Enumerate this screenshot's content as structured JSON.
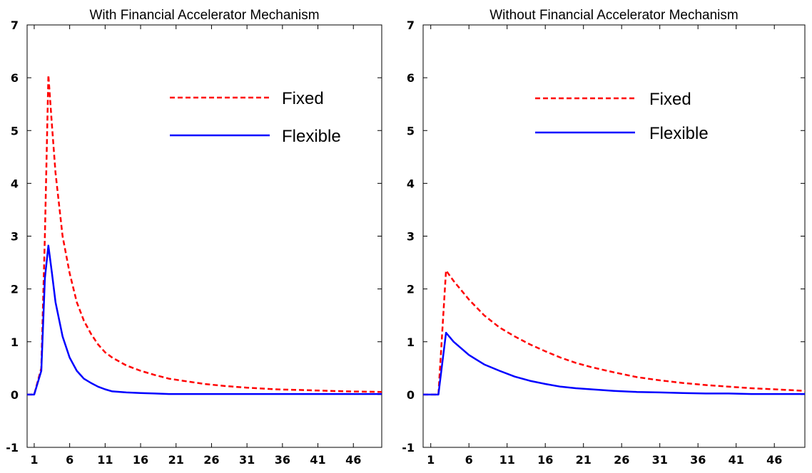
{
  "chart_data": [
    {
      "type": "line",
      "title": "With Financial Accelerator Mechanism",
      "xlabel": "",
      "ylabel": "",
      "xlim": [
        0,
        50
      ],
      "ylim": [
        -1,
        7
      ],
      "xticks": [
        1,
        6,
        11,
        16,
        21,
        26,
        31,
        36,
        41,
        46
      ],
      "yticks": [
        -1,
        0,
        1,
        2,
        3,
        4,
        5,
        6,
        7
      ],
      "grid": false,
      "legend_position": "top-right",
      "x": [
        0,
        1,
        2,
        2.5,
        3,
        3.5,
        4,
        5,
        6,
        7,
        8,
        9,
        10,
        11,
        12,
        14,
        16,
        18,
        20,
        22,
        25,
        28,
        31,
        35,
        40,
        45,
        50
      ],
      "series": [
        {
          "name": "Fixed",
          "color": "#ff0000",
          "style": "dashed",
          "values": [
            0,
            0,
            0.5,
            3.0,
            6.05,
            5.1,
            4.2,
            3.0,
            2.3,
            1.75,
            1.4,
            1.15,
            0.95,
            0.8,
            0.7,
            0.55,
            0.45,
            0.37,
            0.3,
            0.26,
            0.2,
            0.16,
            0.13,
            0.1,
            0.08,
            0.06,
            0.05
          ]
        },
        {
          "name": "Flexible",
          "color": "#0000ff",
          "style": "solid",
          "values": [
            0,
            0,
            0.45,
            2.2,
            2.82,
            2.3,
            1.75,
            1.1,
            0.7,
            0.45,
            0.3,
            0.22,
            0.15,
            0.1,
            0.06,
            0.04,
            0.03,
            0.02,
            0.01,
            0.01,
            0.01,
            0.01,
            0.01,
            0.01,
            0.01,
            0.01,
            0.01
          ]
        }
      ]
    },
    {
      "type": "line",
      "title": "Without Financial Accelerator Mechanism",
      "xlabel": "",
      "ylabel": "",
      "xlim": [
        0,
        50
      ],
      "ylim": [
        -1,
        7
      ],
      "xticks": [
        1,
        6,
        11,
        16,
        21,
        26,
        31,
        36,
        41,
        46
      ],
      "yticks": [
        -1,
        0,
        1,
        2,
        3,
        4,
        5,
        6,
        7
      ],
      "grid": false,
      "legend_position": "top-right",
      "x": [
        0,
        1,
        2,
        3,
        4,
        6,
        8,
        10,
        12,
        14,
        16,
        18,
        20,
        22,
        25,
        28,
        31,
        34,
        37,
        40,
        43,
        46,
        50
      ],
      "series": [
        {
          "name": "Fixed",
          "color": "#ff0000",
          "style": "dashed",
          "values": [
            0,
            0,
            0,
            2.35,
            2.15,
            1.8,
            1.5,
            1.27,
            1.1,
            0.95,
            0.82,
            0.7,
            0.6,
            0.52,
            0.42,
            0.33,
            0.27,
            0.22,
            0.18,
            0.15,
            0.12,
            0.1,
            0.07
          ]
        },
        {
          "name": "Flexible",
          "color": "#0000ff",
          "style": "solid",
          "values": [
            0,
            0,
            0,
            1.17,
            1.0,
            0.75,
            0.57,
            0.45,
            0.34,
            0.26,
            0.2,
            0.15,
            0.12,
            0.1,
            0.07,
            0.05,
            0.04,
            0.03,
            0.02,
            0.02,
            0.01,
            0.01,
            0.01
          ]
        }
      ]
    }
  ]
}
